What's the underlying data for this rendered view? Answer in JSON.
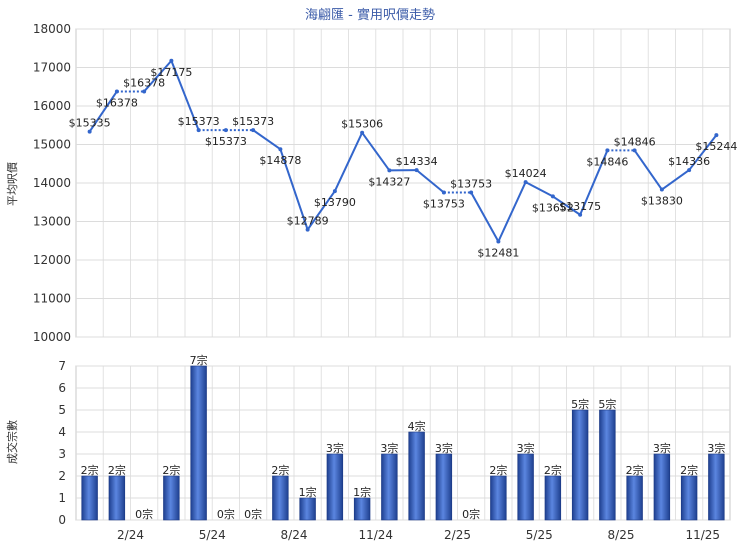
{
  "chart_data": [
    {
      "type": "line",
      "title": "海翩匯 - 實用呎價走勢",
      "ylabel": "平均呎價",
      "ylim": [
        10000,
        18000
      ],
      "yticks": [
        10000,
        11000,
        12000,
        13000,
        14000,
        15000,
        16000,
        17000,
        18000
      ],
      "grid": true,
      "line_color": "#3366cc",
      "point_labels": [
        "$15335",
        "$16378",
        "$16378",
        "$17175",
        "$15373",
        "$15373",
        "$15373",
        "$14878",
        "$12789",
        "$13790",
        "$15306",
        "$14327",
        "$14334",
        "$13753",
        "$13753",
        "$12481",
        "$14024",
        "$13652",
        "$13175",
        "$14846",
        "$14846",
        "$13830",
        "$14336",
        "$15244"
      ],
      "series": [
        {
          "values": [
            15335,
            16378,
            16378,
            17175,
            15373,
            15373,
            15373,
            14878,
            12789,
            13790,
            15306,
            14327,
            14334,
            13753,
            13753,
            12481,
            14024,
            13652,
            13175,
            14846,
            14846,
            13830,
            14336,
            15244
          ]
        }
      ]
    },
    {
      "type": "bar",
      "ylabel": "成交宗數",
      "ylim": [
        0,
        7
      ],
      "yticks": [
        0,
        1,
        2,
        3,
        4,
        5,
        6,
        7
      ],
      "grid": true,
      "bar_color": "#3366cc",
      "x_ticks": [
        {
          "index": 2,
          "label": "2/24"
        },
        {
          "index": 5,
          "label": "5/24"
        },
        {
          "index": 8,
          "label": "8/24"
        },
        {
          "index": 11,
          "label": "11/24"
        },
        {
          "index": 14,
          "label": "2/25"
        },
        {
          "index": 17,
          "label": "5/25"
        },
        {
          "index": 20,
          "label": "8/25"
        },
        {
          "index": 23,
          "label": "11/25"
        }
      ],
      "labels": [
        "2宗",
        "2宗",
        "0宗",
        "2宗",
        "7宗",
        "0宗",
        "0宗",
        "2宗",
        "1宗",
        "3宗",
        "1宗",
        "3宗",
        "4宗",
        "3宗",
        "0宗",
        "2宗",
        "3宗",
        "2宗",
        "5宗",
        "5宗",
        "2宗",
        "3宗",
        "2宗",
        "3宗"
      ],
      "values": [
        2,
        2,
        0,
        2,
        7,
        0,
        0,
        2,
        1,
        3,
        1,
        3,
        4,
        3,
        0,
        2,
        3,
        2,
        5,
        5,
        2,
        3,
        2,
        3
      ]
    }
  ]
}
